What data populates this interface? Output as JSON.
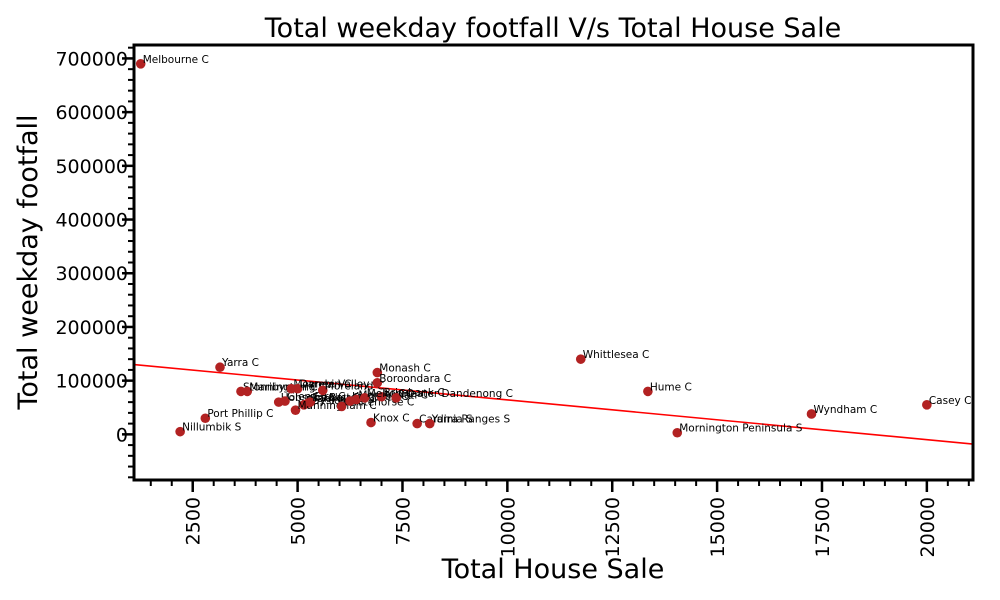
{
  "chart_data": {
    "type": "scatter",
    "title": "Total weekday footfall V/s Total House Sale",
    "xlabel": "Total House Sale",
    "ylabel": "Total weekday footfall",
    "xlim": [
      1100,
      21100
    ],
    "ylim": [
      -85000,
      725000
    ],
    "xticks": [
      2500,
      5000,
      7500,
      10000,
      12500,
      15000,
      17500,
      20000
    ],
    "yticks": [
      0,
      100000,
      200000,
      300000,
      400000,
      500000,
      600000,
      700000
    ],
    "grid": false,
    "point_color": "#b22222",
    "trendline_color": "#ff0000",
    "trendline": {
      "x": [
        1100,
        21100
      ],
      "y": [
        130000,
        -18000
      ]
    },
    "points": [
      {
        "label": "Melbourne C",
        "x": 1260,
        "y": 690000
      },
      {
        "label": "Yarra C",
        "x": 3150,
        "y": 125000
      },
      {
        "label": "Nillumbik S",
        "x": 2200,
        "y": 5000
      },
      {
        "label": "Port Phillip C",
        "x": 2800,
        "y": 30000
      },
      {
        "label": "Stonnington C",
        "x": 3650,
        "y": 80000
      },
      {
        "label": "Maribyrnong C",
        "x": 3800,
        "y": 80000
      },
      {
        "label": "Hobsons Bay C",
        "x": 4550,
        "y": 60000
      },
      {
        "label": "Glen Eira C",
        "x": 4700,
        "y": 62000
      },
      {
        "label": "Moonee Valley C",
        "x": 4850,
        "y": 85000
      },
      {
        "label": "Darebin C",
        "x": 5000,
        "y": 85000
      },
      {
        "label": "Bayside C",
        "x": 5150,
        "y": 55000
      },
      {
        "label": "Banyule C",
        "x": 5250,
        "y": 58000
      },
      {
        "label": "Manningham C",
        "x": 4950,
        "y": 45000
      },
      {
        "label": "Frankston C",
        "x": 5300,
        "y": 60000
      },
      {
        "label": "Moreland C",
        "x": 5600,
        "y": 82000
      },
      {
        "label": "Whitehorse C",
        "x": 6050,
        "y": 52000
      },
      {
        "label": "Kingston C",
        "x": 6250,
        "y": 62000
      },
      {
        "label": "Maroondah C",
        "x": 6400,
        "y": 65000
      },
      {
        "label": "Brimbank C",
        "x": 7000,
        "y": 70000
      },
      {
        "label": "Melton C",
        "x": 6600,
        "y": 68000
      },
      {
        "label": "Greater Dandenong C",
        "x": 7350,
        "y": 68000
      },
      {
        "label": "Knox C",
        "x": 6750,
        "y": 22000
      },
      {
        "label": "Monash C",
        "x": 6900,
        "y": 115000
      },
      {
        "label": "Boroondara C",
        "x": 6900,
        "y": 96000
      },
      {
        "label": "Cardinia S",
        "x": 7850,
        "y": 20000
      },
      {
        "label": "Yarra Ranges S",
        "x": 8150,
        "y": 20000
      },
      {
        "label": "Whittlesea C",
        "x": 11750,
        "y": 140000
      },
      {
        "label": "Hume C",
        "x": 13350,
        "y": 80000
      },
      {
        "label": "Mornington Peninsula S",
        "x": 14050,
        "y": 3000
      },
      {
        "label": "Wyndham C",
        "x": 17250,
        "y": 38000
      },
      {
        "label": "Casey C",
        "x": 20000,
        "y": 55000
      }
    ]
  }
}
